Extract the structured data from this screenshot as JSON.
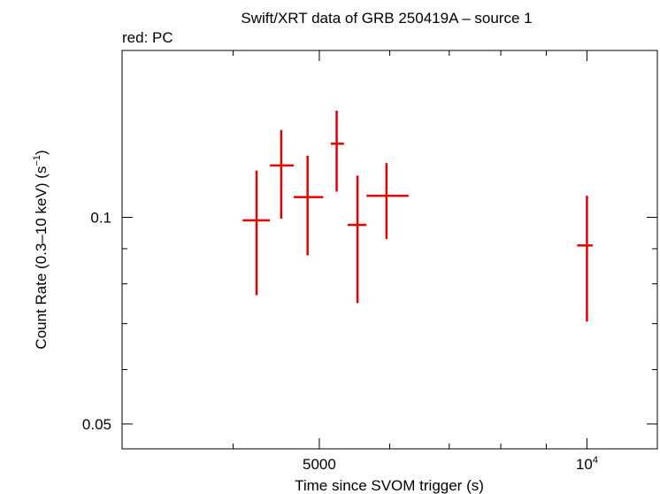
{
  "chart_data": {
    "type": "scatter",
    "title": "Swift/XRT data of GRB 250419A – source 1",
    "subtitle": "red: PC",
    "xlabel": "Time since SVOM trigger (s)",
    "ylabel": "Count Rate (0.3–10 keV) (s",
    "ylabel_sup": "−1",
    "ylabel_end": ")",
    "x_scale": "log",
    "y_scale": "log",
    "xlim": [
      3000,
      12000
    ],
    "ylim": [
      0.046,
      0.175
    ],
    "x_ticks": [
      {
        "value": 5000,
        "label": "5000"
      },
      {
        "value": 10000,
        "label": "10",
        "sup": "4"
      }
    ],
    "y_ticks": [
      {
        "value": 0.05,
        "label": "0.05"
      },
      {
        "value": 0.1,
        "label": "0.1"
      }
    ],
    "grid": false,
    "series": [
      {
        "color": "#e60000",
        "points": [
          {
            "x": 4250,
            "x_lo": 4100,
            "x_hi": 4400,
            "y": 0.099,
            "y_lo": 0.077,
            "y_hi": 0.117
          },
          {
            "x": 4530,
            "x_lo": 4400,
            "x_hi": 4680,
            "y": 0.119,
            "y_lo": 0.0995,
            "y_hi": 0.134
          },
          {
            "x": 4850,
            "x_lo": 4680,
            "x_hi": 5050,
            "y": 0.107,
            "y_lo": 0.088,
            "y_hi": 0.123
          },
          {
            "x": 5230,
            "x_lo": 5150,
            "x_hi": 5330,
            "y": 0.128,
            "y_lo": 0.109,
            "y_hi": 0.143
          },
          {
            "x": 5520,
            "x_lo": 5380,
            "x_hi": 5650,
            "y": 0.0975,
            "y_lo": 0.075,
            "y_hi": 0.115
          },
          {
            "x": 5950,
            "x_lo": 5650,
            "x_hi": 6300,
            "y": 0.1075,
            "y_lo": 0.093,
            "y_hi": 0.12
          },
          {
            "x": 10000,
            "x_lo": 9750,
            "x_hi": 10150,
            "y": 0.091,
            "y_lo": 0.0705,
            "y_hi": 0.1075
          }
        ]
      }
    ]
  }
}
